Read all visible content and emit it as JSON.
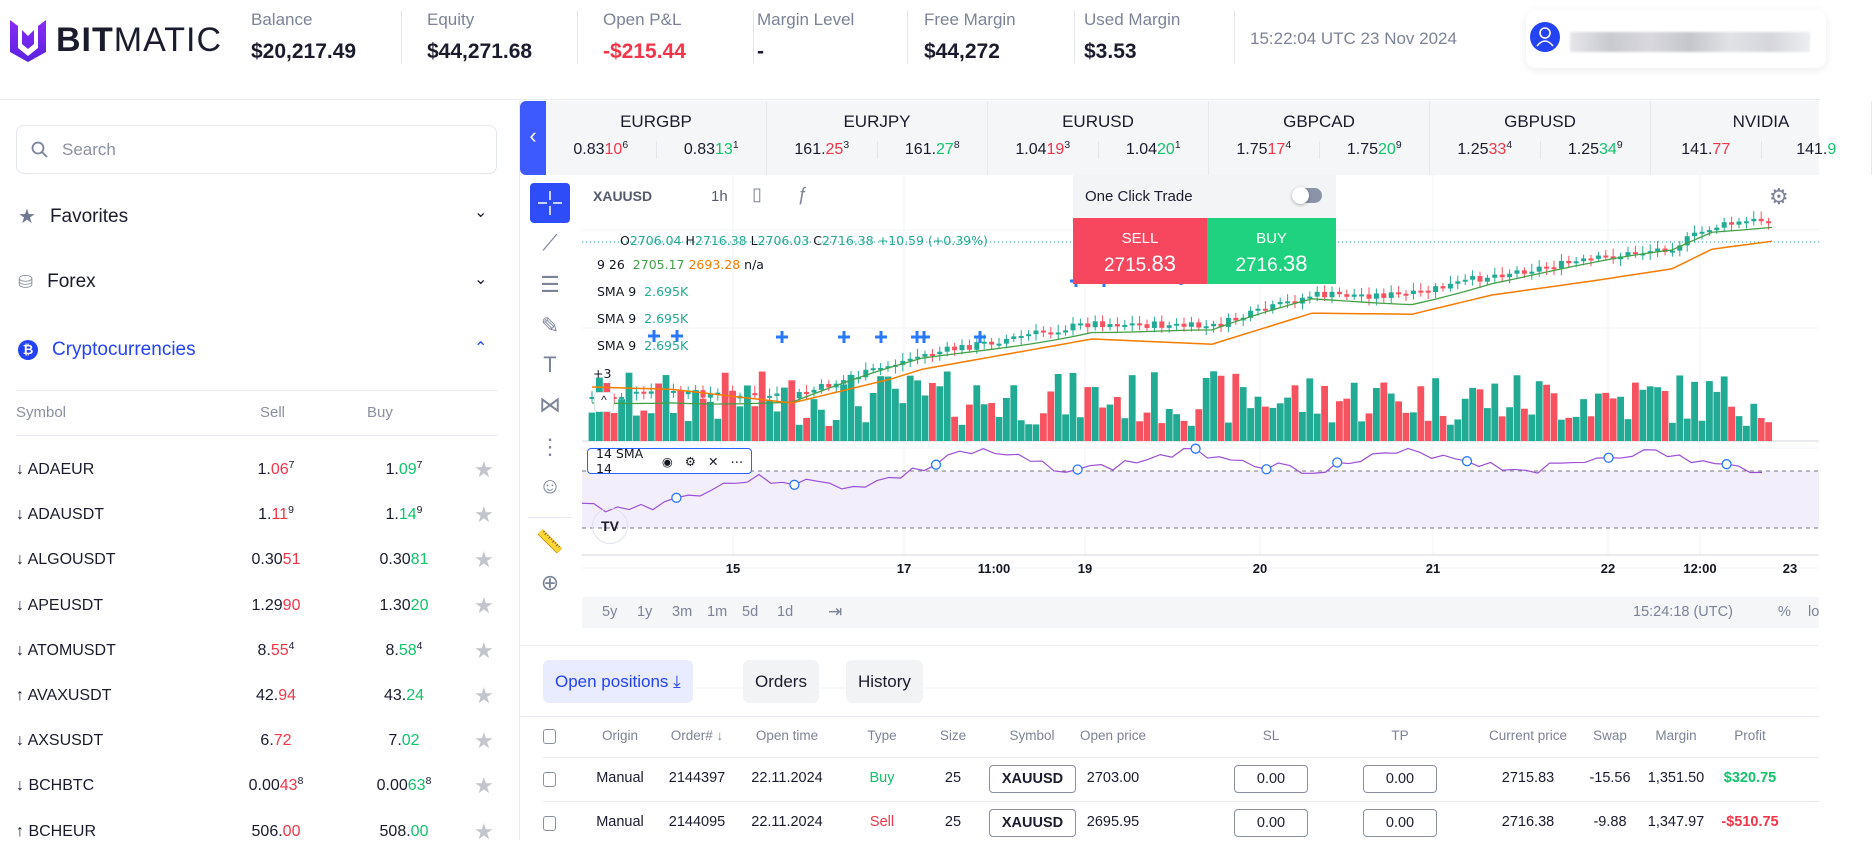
{
  "brand": {
    "name_bold": "BIT",
    "name_light": "MATIC"
  },
  "account": {
    "stats": [
      {
        "label": "Balance",
        "value": "$20,217.49"
      },
      {
        "label": "Equity",
        "value": "$44,271.68"
      },
      {
        "label": "Open P&L",
        "value": "-$215.44"
      },
      {
        "label": "Margin Level",
        "value": "-"
      },
      {
        "label": "Free Margin",
        "value": "$44,272"
      },
      {
        "label": "Used Margin",
        "value": "$3.53"
      }
    ],
    "datetime": "15:22:04 UTC 23 Nov 2024"
  },
  "colors": {
    "accent": "#3d5afe",
    "sell": "#f7475e",
    "buy": "#1ed27f",
    "loss": "#f23548",
    "gain": "#10c46a"
  },
  "sidebar": {
    "search_placeholder": "Search",
    "categories": [
      {
        "label": "Favorites",
        "icon": "star-icon",
        "expanded": false
      },
      {
        "label": "Forex",
        "icon": "coins-icon",
        "expanded": false
      },
      {
        "label": "Cryptocurrencies",
        "icon": "bitcoin-icon",
        "expanded": true
      }
    ],
    "columns": {
      "symbol": "Symbol",
      "sell": "Sell",
      "buy": "Buy"
    },
    "rows": [
      {
        "dir": "↓",
        "symbol": "ADAEUR",
        "sell": [
          "1.",
          "06",
          "7"
        ],
        "buy": [
          "1.",
          "09",
          "7"
        ]
      },
      {
        "dir": "↓",
        "symbol": "ADAUSDT",
        "sell": [
          "1.",
          "11",
          "9"
        ],
        "buy": [
          "1.",
          "14",
          "9"
        ]
      },
      {
        "dir": "↓",
        "symbol": "ALGOUSDT",
        "sell": [
          "0.30",
          "51",
          ""
        ],
        "buy": [
          "0.30",
          "81",
          ""
        ]
      },
      {
        "dir": "↓",
        "symbol": "APEUSDT",
        "sell": [
          "1.29",
          "90",
          ""
        ],
        "buy": [
          "1.30",
          "20",
          ""
        ]
      },
      {
        "dir": "↓",
        "symbol": "ATOMUSDT",
        "sell": [
          "8.",
          "55",
          "4"
        ],
        "buy": [
          "8.",
          "58",
          "4"
        ]
      },
      {
        "dir": "↑",
        "symbol": "AVAXUSDT",
        "sell": [
          "42.",
          "94",
          ""
        ],
        "buy": [
          "43.",
          "24",
          ""
        ]
      },
      {
        "dir": "↓",
        "symbol": "AXSUSDT",
        "sell": [
          "6.",
          "72",
          ""
        ],
        "buy": [
          "7.",
          "02",
          ""
        ]
      },
      {
        "dir": "↓",
        "symbol": "BCHBTC",
        "sell": [
          "0.00",
          "43",
          "8"
        ],
        "buy": [
          "0.00",
          "63",
          "8"
        ]
      },
      {
        "dir": "↑",
        "symbol": "BCHEUR",
        "sell": [
          "506.",
          "00",
          ""
        ],
        "buy": [
          "508.",
          "00",
          ""
        ]
      }
    ]
  },
  "ticker": [
    {
      "name": "EURGBP",
      "sell": [
        "0.83",
        "10",
        "6"
      ],
      "buy": [
        "0.83",
        "13",
        "1"
      ]
    },
    {
      "name": "EURJPY",
      "sell": [
        "161.",
        "25",
        "3"
      ],
      "buy": [
        "161.",
        "27",
        "8"
      ]
    },
    {
      "name": "EURUSD",
      "sell": [
        "1.04",
        "19",
        "3"
      ],
      "buy": [
        "1.04",
        "20",
        "1"
      ]
    },
    {
      "name": "GBPCAD",
      "sell": [
        "1.75",
        "17",
        "4"
      ],
      "buy": [
        "1.75",
        "20",
        "9"
      ]
    },
    {
      "name": "GBPUSD",
      "sell": [
        "1.25",
        "33",
        "4"
      ],
      "buy": [
        "1.25",
        "34",
        "9"
      ]
    },
    {
      "name": "NVIDIA",
      "sell": [
        "141.",
        "77",
        ""
      ],
      "buy": [
        "141.",
        "9",
        ""
      ]
    }
  ],
  "chart": {
    "symbol": "XAUUSD",
    "interval": "1h",
    "ohlc": {
      "o": "O",
      "ov": "2706.04",
      "h": "H",
      "hv": "2716.38",
      "l": "L",
      "lv": "2706.03",
      "c": "C",
      "cv": "2716.38",
      "chg": "+10.59 (+0.39%)"
    },
    "ma": {
      "label": "9 26",
      "v1": "2705.17",
      "v2": "2693.28",
      "v3": "n/a"
    },
    "sma": [
      {
        "label": "SMA 9",
        "value": "2.695K"
      },
      {
        "label": "SMA 9",
        "value": "2.695K"
      },
      {
        "label": "SMA 9",
        "value": "2.695K"
      }
    ],
    "plus_label": "+3",
    "osc_label": "14 SMA 14",
    "x_ticks": [
      "15",
      "17",
      "11:00",
      "19",
      "20",
      "21",
      "22",
      "12:00",
      "23"
    ],
    "timeframes": [
      "5y",
      "1y",
      "3m",
      "1m",
      "5d",
      "1d"
    ],
    "clock": "15:24:18 (UTC)",
    "percent": "%",
    "log": "lo"
  },
  "one_click": {
    "label": "One Click Trade",
    "enabled": false,
    "sell_label": "SELL",
    "sell_main": "2715.",
    "sell_big": "83",
    "buy_label": "BUY",
    "buy_main": "2716.",
    "buy_big": "38"
  },
  "positions": {
    "tabs": [
      {
        "label": "Open positions",
        "active": true
      },
      {
        "label": "Orders"
      },
      {
        "label": "History"
      }
    ],
    "columns": [
      "Origin",
      "Order# ↓",
      "Open time",
      "Type",
      "Size",
      "Symbol",
      "Open price",
      "SL",
      "TP",
      "Current price",
      "Swap",
      "Margin",
      "Profit"
    ],
    "rows": [
      {
        "origin": "Manual",
        "order": "2144397",
        "time": "22.11.2024",
        "type": "Buy",
        "size": "25",
        "symbol": "XAUUSD",
        "open": "2703.00",
        "sl": "0.00",
        "tp": "0.00",
        "current": "2715.83",
        "swap": "-15.56",
        "margin": "1,351.50",
        "profit": "$320.75"
      },
      {
        "origin": "Manual",
        "order": "2144095",
        "time": "22.11.2024",
        "type": "Sell",
        "size": "25",
        "symbol": "XAUUSD",
        "open": "2695.95",
        "sl": "0.00",
        "tp": "0.00",
        "current": "2716.38",
        "swap": "-9.88",
        "margin": "1,347.97",
        "profit": "-$510.75"
      }
    ]
  }
}
